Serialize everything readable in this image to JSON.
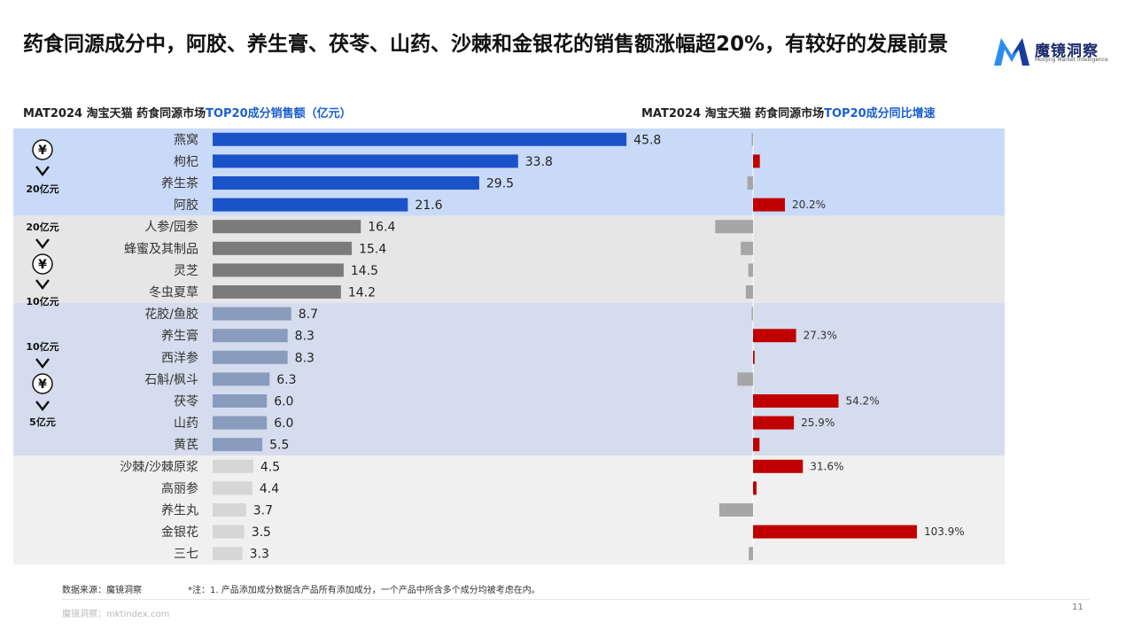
{
  "header": {
    "title": "药食同源成分中，阿胶、养生膏、茯苓、山药、沙棘和金银花的销售额涨幅超20%，有较好的发展前景"
  },
  "logo": {
    "name": "魔镜洞察",
    "tagline": "Moojing Market Intelligence"
  },
  "left_title": {
    "prefix": "MAT2024 淘宝天猫 药食同源市场",
    "highlight": "TOP20成分销售额（亿元）"
  },
  "right_title": {
    "prefix": "MAT2024 淘宝天猫 药食同源市场",
    "highlight": "TOP20成分同比增速"
  },
  "tiers": [
    {
      "label_top": "",
      "label_bottom": "20亿元",
      "bg": "#c9daf8",
      "rows": 4
    },
    {
      "label_top": "20亿元",
      "label_bottom": "10亿元",
      "bg": "#e6e6e6",
      "rows": 4
    },
    {
      "label_top": "10亿元",
      "label_bottom": "5亿元",
      "bg": "#d5dced",
      "rows": 7
    },
    {
      "label_top": "",
      "label_bottom": "",
      "bg": "#f0f0f0",
      "rows": 5
    }
  ],
  "tier_symbol": "¥",
  "colors": {
    "tier1_bar": "#1a52c9",
    "tier2_bar": "#7b7b7b",
    "tier3_bar": "#8a9cbd",
    "tier4_bar": "#d6d6d6",
    "growth_positive": "#c00000",
    "growth_negative": "#a6a6a6"
  },
  "chart_data": [
    {
      "type": "bar",
      "orientation": "horizontal",
      "title": "MAT2024 淘宝天猫 药食同源市场TOP20成分销售额（亿元）",
      "categories": [
        "燕窝",
        "枸杞",
        "养生茶",
        "阿胶",
        "人参/园参",
        "蜂蜜及其制品",
        "灵芝",
        "冬虫夏草",
        "花胶/鱼胶",
        "养生膏",
        "西洋参",
        "石斛/枫斗",
        "茯苓",
        "山药",
        "黄芪",
        "沙棘/沙棘原浆",
        "高丽参",
        "养生丸",
        "金银花",
        "三七"
      ],
      "values": [
        45.8,
        33.8,
        29.5,
        21.6,
        16.4,
        15.4,
        14.5,
        14.2,
        8.7,
        8.3,
        8.3,
        6.3,
        6.0,
        6.0,
        5.5,
        4.5,
        4.4,
        3.7,
        3.5,
        3.3
      ],
      "value_labels": [
        "45.8",
        "33.8",
        "29.5",
        "21.6",
        "16.4",
        "15.4",
        "14.5",
        "14.2",
        "8.7",
        "8.3",
        "8.3",
        "6.3",
        "6.0",
        "6.0",
        "5.5",
        "4.5",
        "4.4",
        "3.7",
        "3.5",
        "3.3"
      ],
      "xlim": [
        0,
        50
      ]
    },
    {
      "type": "bar",
      "orientation": "horizontal",
      "title": "MAT2024 淘宝天猫 药食同源市场TOP20成分同比增速",
      "unit": "%",
      "categories": [
        "燕窝",
        "枸杞",
        "养生茶",
        "阿胶",
        "人参/园参",
        "蜂蜜及其制品",
        "灵芝",
        "冬虫夏草",
        "花胶/鱼胶",
        "养生膏",
        "西洋参",
        "石斛/枫斗",
        "茯苓",
        "山药",
        "黄芪",
        "沙棘/沙棘原浆",
        "高丽参",
        "养生丸",
        "金银花",
        "三七"
      ],
      "values": [
        -0.3,
        4.3,
        -3.6,
        20.2,
        -24.0,
        -7.8,
        -3.0,
        -4.6,
        -0.2,
        27.3,
        1.0,
        -9.9,
        54.2,
        25.9,
        4.1,
        31.6,
        2.2,
        -21.4,
        103.9,
        -2.7
      ],
      "value_labels": [
        "",
        "",
        "",
        "20.2%",
        "",
        "",
        "",
        "",
        "",
        "27.3%",
        "",
        "",
        "54.2%",
        "25.9%",
        "",
        "31.6%",
        "",
        "",
        "103.9%",
        ""
      ],
      "xlim": [
        -30,
        110
      ]
    }
  ],
  "footer": {
    "source": "数据来源：魔镜洞察",
    "note": "*注：1. 产品添加成分数据含产品所有添加成分，一个产品中所含多个成分均被考虑在内。",
    "site": "魔镜洞察：mktindex.com",
    "page": "11"
  }
}
